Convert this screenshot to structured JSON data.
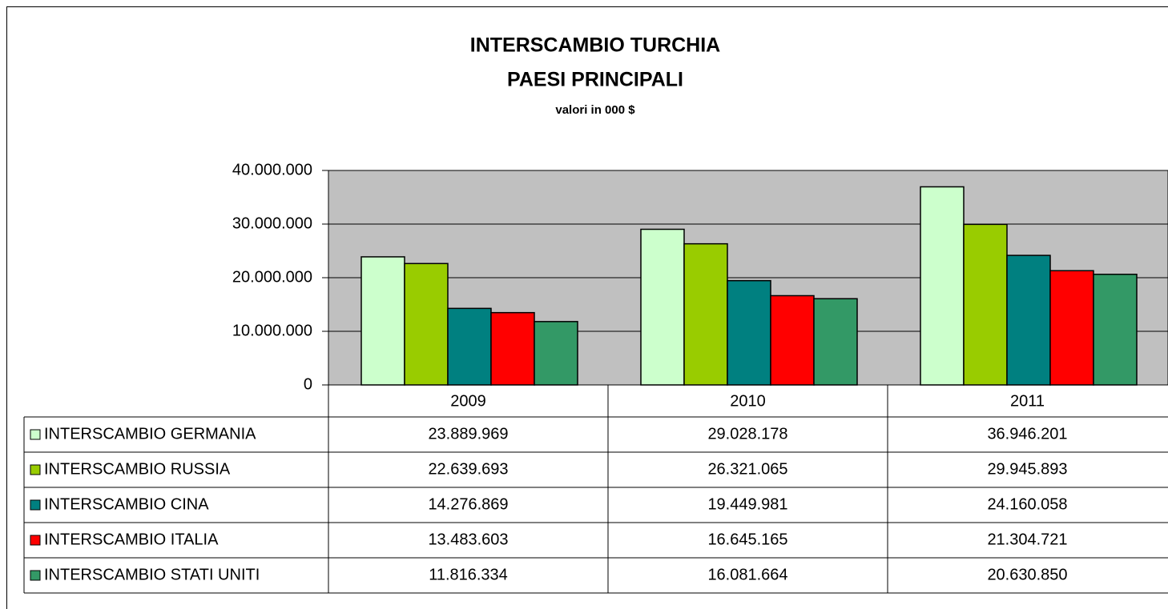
{
  "chart_data": {
    "type": "bar",
    "title": [
      "INTERSCAMBIO TURCHIA",
      "PAESI PRINCIPALI"
    ],
    "subtitle": "valori in 000 $",
    "categories": [
      "2009",
      "2010",
      "2011"
    ],
    "series": [
      {
        "name": "INTERSCAMBIO GERMANIA",
        "color": "#ccffcc",
        "values": [
          23889969,
          29028178,
          36946201
        ],
        "value_labels": [
          "23.889.969",
          "29.028.178",
          "36.946.201"
        ]
      },
      {
        "name": "INTERSCAMBIO RUSSIA",
        "color": "#99cc00",
        "values": [
          22639693,
          26321065,
          29945893
        ],
        "value_labels": [
          "22.639.693",
          "26.321.065",
          "29.945.893"
        ]
      },
      {
        "name": "INTERSCAMBIO CINA",
        "color": "#008080",
        "values": [
          14276869,
          19449981,
          24160058
        ],
        "value_labels": [
          "14.276.869",
          "19.449.981",
          "24.160.058"
        ]
      },
      {
        "name": "INTERSCAMBIO ITALIA",
        "color": "#ff0000",
        "values": [
          13483603,
          16645165,
          21304721
        ],
        "value_labels": [
          "13.483.603",
          "16.645.165",
          "21.304.721"
        ]
      },
      {
        "name": "INTERSCAMBIO STATI UNITI",
        "color": "#339966",
        "values": [
          11816334,
          16081664,
          20630850
        ],
        "value_labels": [
          "11.816.334",
          "16.081.664",
          "20.630.850"
        ]
      }
    ],
    "ylim": [
      0,
      40000000
    ],
    "yticks": [
      0,
      {
        "value": 10000000,
        "label": "10.000.000"
      },
      {
        "value": 20000000,
        "label": "20.000.000"
      },
      {
        "value": 30000000,
        "label": "30.000.000"
      },
      {
        "value": 40000000,
        "label": "40.000.000"
      }
    ],
    "grid": true,
    "plot_background": "#c0c0c0"
  }
}
